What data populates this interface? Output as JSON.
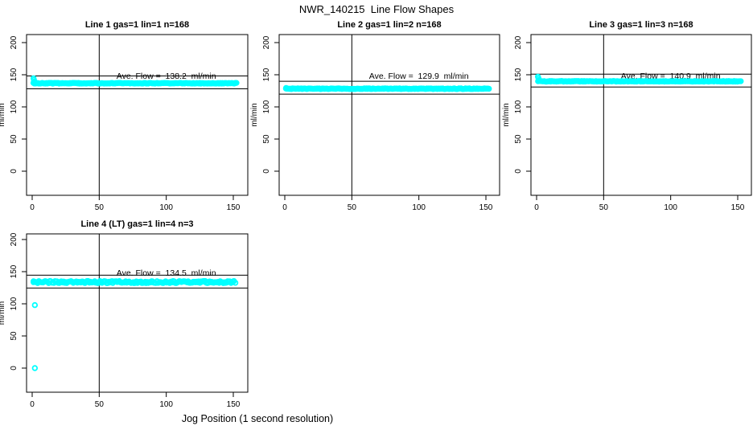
{
  "figure_title": "NWR_140215  Line Flow Shapes",
  "bottom_axis_label": "Jog Position (1 second resolution)",
  "colors": {
    "points": "#00FFFF",
    "axis": "#000000",
    "background": "#FFFFFF"
  },
  "chart_data": {
    "type": "scatter",
    "title": "NWR_140215  Line Flow Shapes",
    "xlabel": "Jog Position (1 second resolution)",
    "ylabel": "ml/min",
    "xlim": [
      0,
      155
    ],
    "ylim": [
      0,
      200
    ],
    "grid": false,
    "legend": "none",
    "panels": [
      {
        "title": "Line 1 gas=1 lin=1 n=168",
        "ylabel": "ml/min",
        "n": 168,
        "ave_flow": 138.2,
        "ave_flow_label": "Ave. Flow =  138.2  ml/min",
        "ref_lines": [
          148.2,
          128.2
        ],
        "vline_x": 50,
        "xticks": [
          0,
          50,
          100,
          150
        ],
        "yticks": [
          0,
          50,
          100,
          150,
          200
        ],
        "band": {
          "x_start": 1,
          "x_end": 153,
          "y_mean": 136.8,
          "y_jitter": 0.5
        },
        "hook_points": [
          [
            1,
            144.5
          ],
          [
            1.3,
            142.0
          ],
          [
            1.7,
            139.5
          ]
        ],
        "outlier_points": []
      },
      {
        "title": "Line 2 gas=1 lin=2 n=168",
        "ylabel": "ml/min",
        "n": 168,
        "ave_flow": 129.9,
        "ave_flow_label": "Ave. Flow =  129.9  ml/min",
        "ref_lines": [
          139.9,
          119.9
        ],
        "vline_x": 50,
        "xticks": [
          0,
          50,
          100,
          150
        ],
        "yticks": [
          0,
          50,
          100,
          150,
          200
        ],
        "band": {
          "x_start": 1,
          "x_end": 153,
          "y_mean": 128.3,
          "y_jitter": 0.5
        },
        "hook_points": [
          [
            1,
            129.5
          ],
          [
            1.5,
            128.8
          ]
        ],
        "outlier_points": []
      },
      {
        "title": "Line 3 gas=1 lin=3 n=168",
        "ylabel": "ml/min",
        "n": 168,
        "ave_flow": 140.9,
        "ave_flow_label": "Ave. Flow =  140.9  ml/min",
        "ref_lines": [
          150.9,
          130.9
        ],
        "vline_x": 50,
        "xticks": [
          0,
          50,
          100,
          150
        ],
        "yticks": [
          0,
          50,
          100,
          150,
          200
        ],
        "band": {
          "x_start": 1,
          "x_end": 153,
          "y_mean": 139.8,
          "y_jitter": 0.5
        },
        "hook_points": [
          [
            1,
            147.0
          ],
          [
            1.4,
            144.5
          ],
          [
            1.8,
            142.0
          ]
        ],
        "outlier_points": []
      },
      {
        "title": "Line 4 (LT) gas=1 lin=4 n=3",
        "ylabel": "ml/min",
        "n": 3,
        "ave_flow": 134.5,
        "ave_flow_label": "Ave. Flow =  134.5  ml/min",
        "ref_lines": [
          144.5,
          124.5
        ],
        "vline_x": 50,
        "xticks": [
          0,
          50,
          100,
          150
        ],
        "yticks": [
          0,
          50,
          100,
          150,
          200
        ],
        "band": {
          "x_start": 1,
          "x_end": 152,
          "y_mean": 133.8,
          "y_jitter": 1.6
        },
        "hook_points": [
          [
            1,
            135.0
          ]
        ],
        "outlier_points": [
          [
            2,
            98
          ],
          [
            2,
            0
          ]
        ]
      }
    ]
  }
}
